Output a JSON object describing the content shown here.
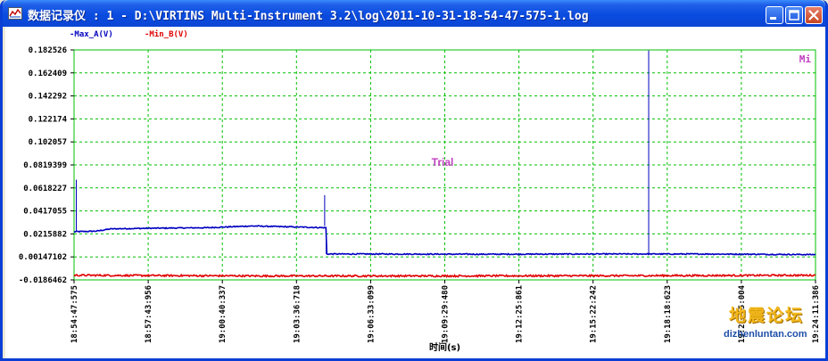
{
  "window": {
    "title": "数据记录仪 : 1 - D:\\VIRTINS Multi-Instrument 3.2\\log\\2011-10-31-18-54-47-575-1.log",
    "controls": [
      "minimize",
      "maximize",
      "close"
    ]
  },
  "chart_data": {
    "type": "line",
    "title": "",
    "xlabel": "时间(s)",
    "ylabel": "",
    "ylim": [
      -0.0186462,
      0.182526
    ],
    "yticks": [
      "0.182526",
      "0.162409",
      "0.142292",
      "0.122174",
      "0.102057",
      "0.0819399",
      "0.0618227",
      "0.0417055",
      "0.0215882",
      "0.00147102",
      "-0.0186462"
    ],
    "xticks": [
      "18:54:47:575",
      "18:57:43:956",
      "19:00:40:337",
      "19:03:36:718",
      "19:06:33:099",
      "19:09:29:480",
      "19:12:25:861",
      "19:15:22:242",
      "19:18:18:623",
      "19:21:15:004",
      "19:24:11:386"
    ],
    "grid": true,
    "legend_position": "top-left",
    "annotations": [
      "Trial",
      "Mi"
    ],
    "series": [
      {
        "name": "Max_A(V)",
        "color": "#0000c0",
        "x_fraction": [
          0.0,
          0.03,
          0.05,
          0.1,
          0.18,
          0.24,
          0.34,
          0.34,
          0.4,
          0.55,
          0.7,
          0.775,
          0.85,
          1.0
        ],
        "values": [
          0.0235,
          0.024,
          0.026,
          0.0265,
          0.027,
          0.0285,
          0.027,
          0.004,
          0.004,
          0.0038,
          0.004,
          0.004,
          0.004,
          0.0035
        ],
        "spikes": [
          {
            "x_fraction": 0.003,
            "value": 0.069
          },
          {
            "x_fraction": 0.338,
            "value": 0.0555
          },
          {
            "x_fraction": 0.775,
            "value": 0.182
          }
        ]
      },
      {
        "name": "Min_B(V)",
        "color": "#e00000",
        "x_fraction": [
          0.0,
          0.25,
          0.5,
          0.75,
          1.0
        ],
        "values": [
          -0.0146,
          -0.0152,
          -0.0152,
          -0.015,
          -0.0146
        ],
        "spikes": []
      }
    ]
  },
  "watermark": {
    "text": "地震论坛",
    "url": "dizhenluntan.com"
  }
}
